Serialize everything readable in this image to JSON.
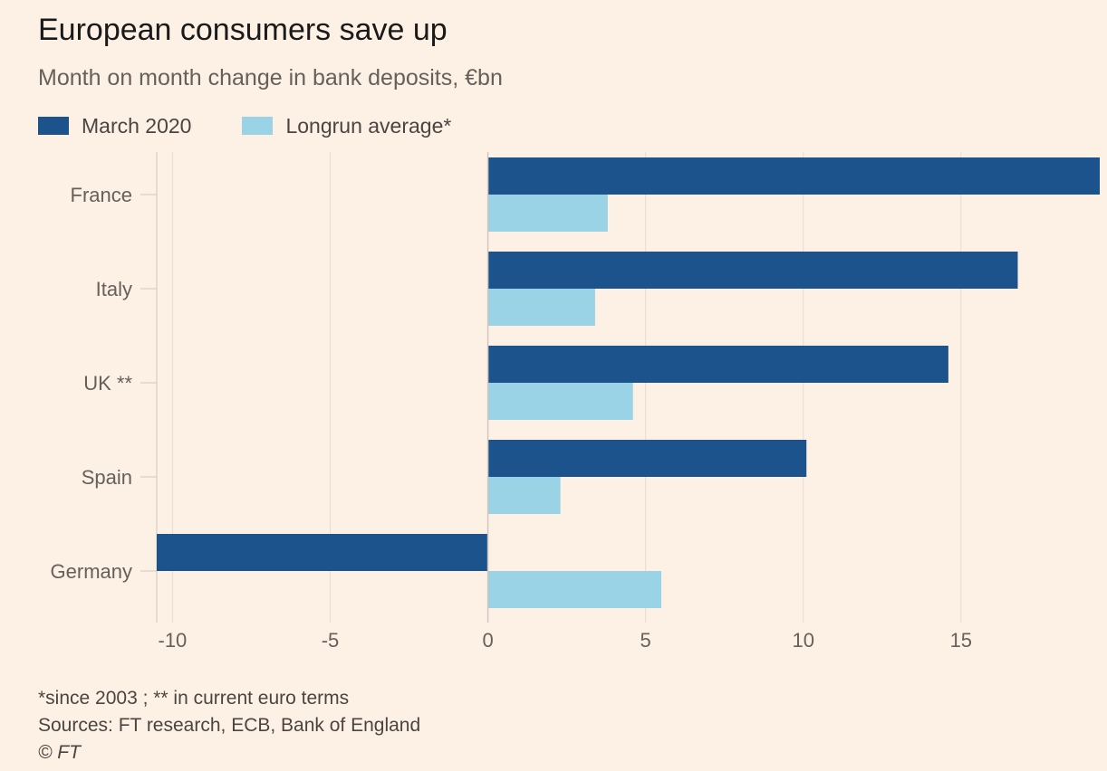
{
  "title": "European consumers save up",
  "subtitle": "Month on month change in bank deposits, €bn",
  "legend": [
    {
      "label": "March 2020",
      "color": "#1d538c"
    },
    {
      "label": "Longrun average*",
      "color": "#9ad3e6"
    }
  ],
  "footer": {
    "note": "*since 2003 ; ** in current euro terms",
    "source": "Sources: FT research, ECB, Bank of England",
    "copyright": "© FT"
  },
  "chart_data": {
    "type": "bar",
    "orientation": "horizontal",
    "categories": [
      "France",
      "Italy",
      "UK **",
      "Spain",
      "Germany"
    ],
    "series": [
      {
        "name": "March 2020",
        "values": [
          19.4,
          16.8,
          14.6,
          10.1,
          -10.5
        ]
      },
      {
        "name": "Longrun average*",
        "values": [
          3.8,
          3.4,
          4.6,
          2.3,
          5.5
        ]
      }
    ],
    "xlim": [
      -10.5,
      19.4
    ],
    "xticks": [
      -10,
      -5,
      0,
      5,
      10,
      15
    ],
    "xtick_labels": [
      "-10",
      "-5",
      "0",
      "5",
      "10",
      "15"
    ],
    "grid": "vertical"
  }
}
